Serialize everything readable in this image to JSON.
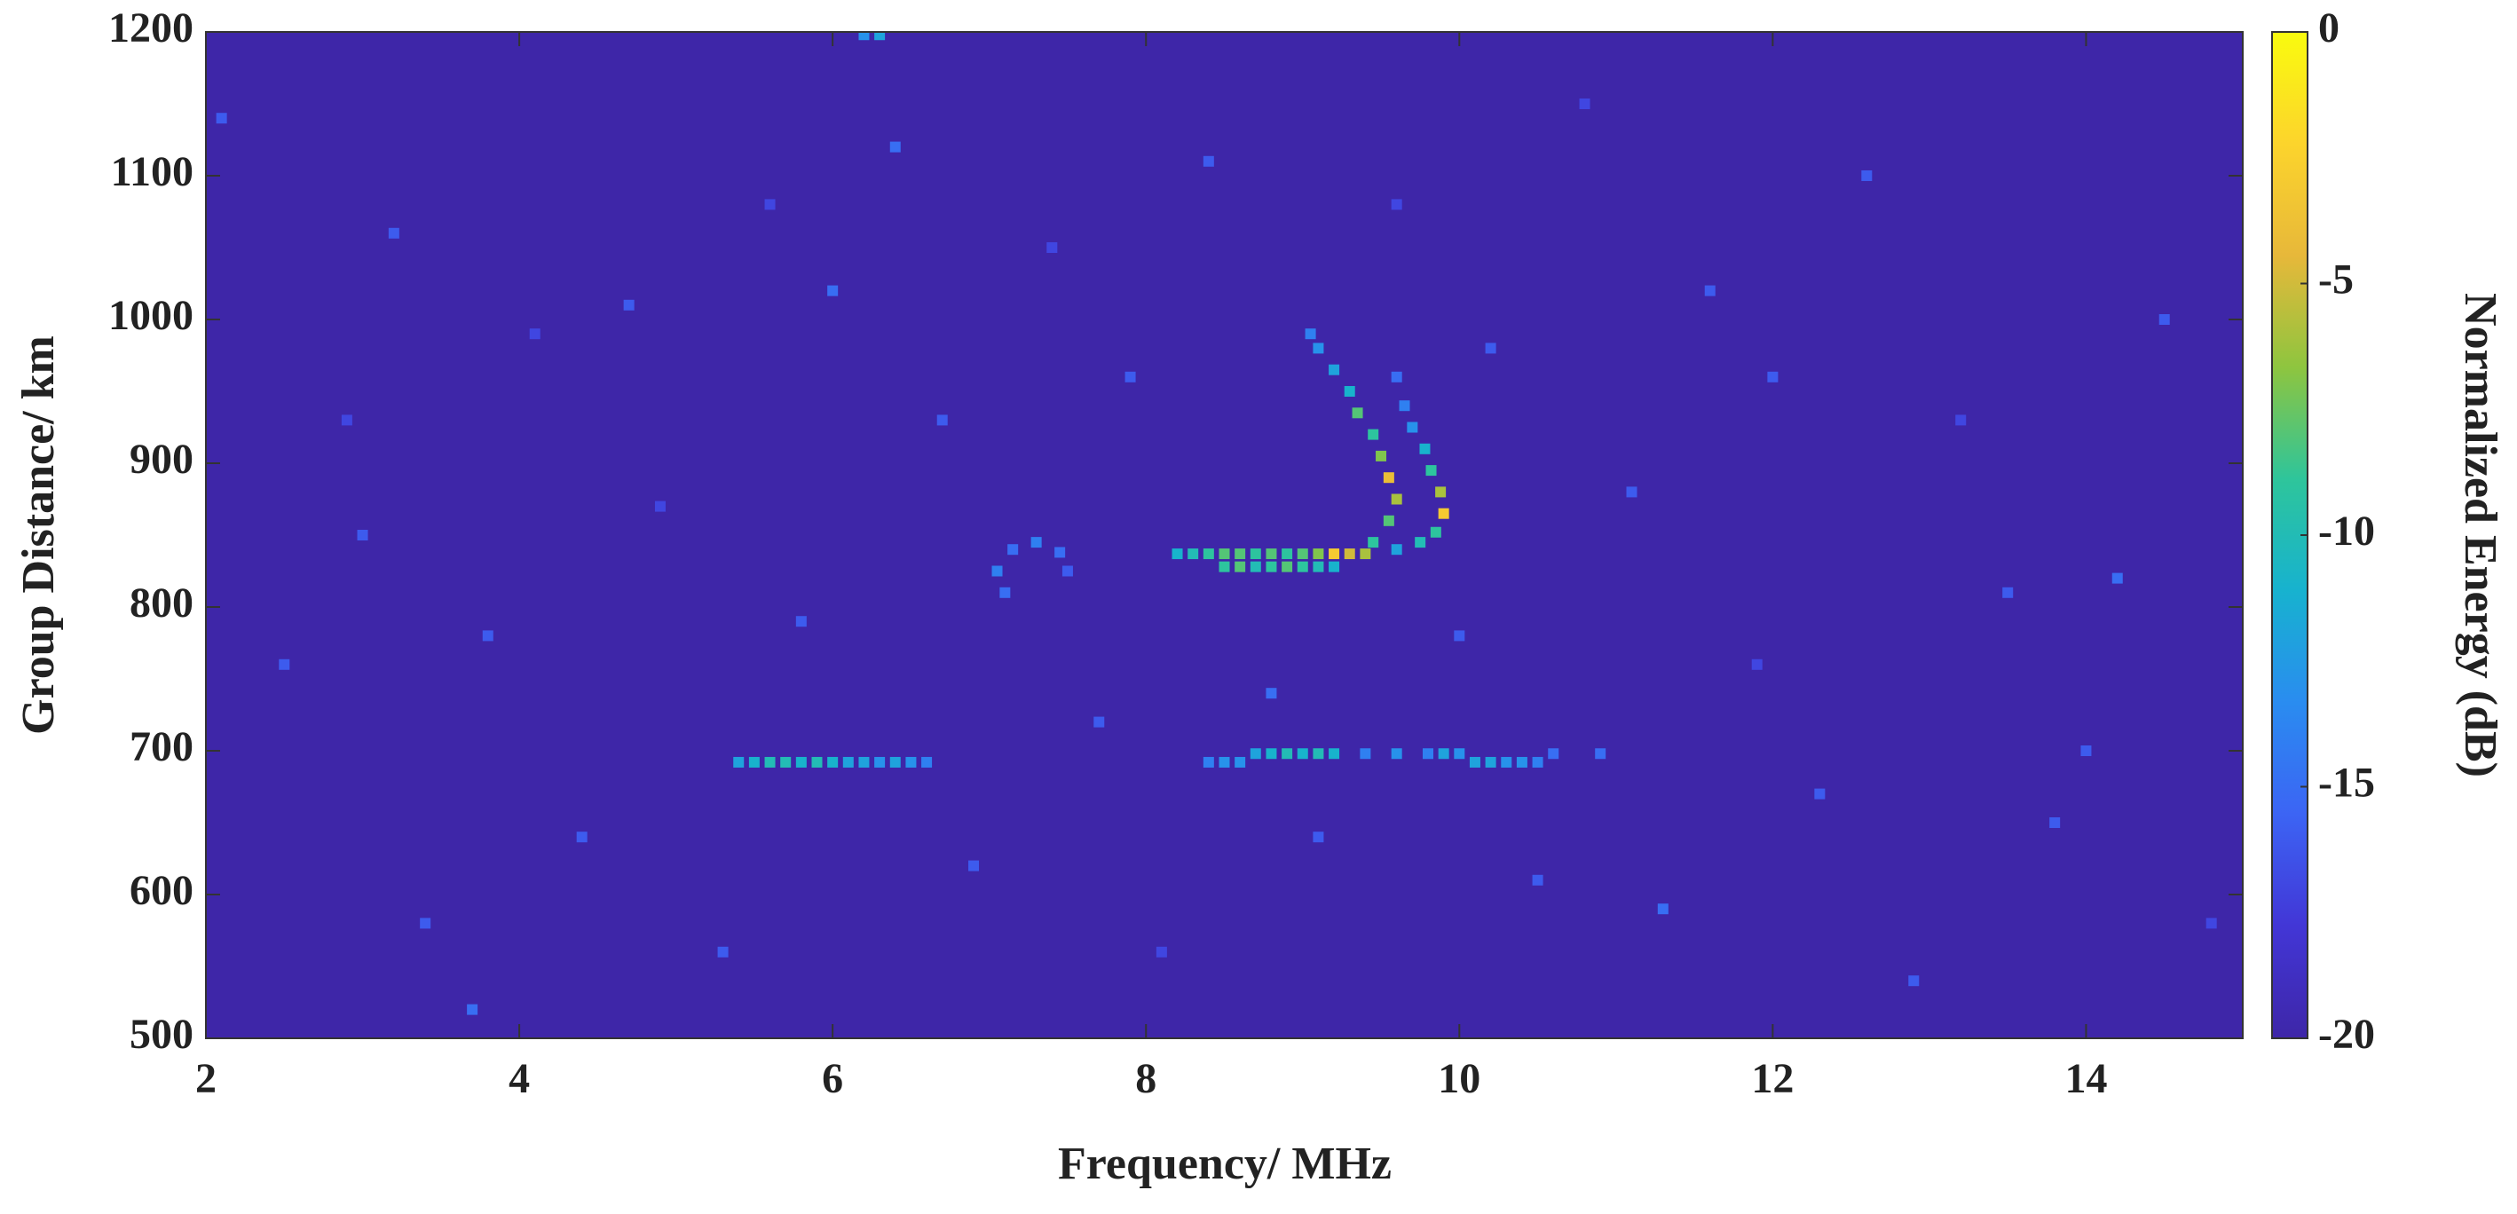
{
  "chart_data": {
    "type": "heatmap",
    "xlabel": "Frequency/ MHz",
    "ylabel": "Group Distance/ km",
    "colorbar_label": "Normalized Energy (dB)",
    "xlim": [
      2,
      15
    ],
    "xticks": [
      2,
      4,
      6,
      8,
      10,
      12,
      14
    ],
    "ylim": [
      500,
      1200
    ],
    "yticks": [
      500,
      600,
      700,
      800,
      900,
      1000,
      1100,
      1200
    ],
    "clim": [
      -20,
      0
    ],
    "cticks": [
      0,
      -5,
      -10,
      -15,
      -20
    ],
    "colormap": [
      "#3e26a8",
      "#4236d6",
      "#3c64f4",
      "#2a8cf0",
      "#17b2cf",
      "#2ec59b",
      "#8ec53f",
      "#e7b83a",
      "#fcd42c",
      "#f9fb0e"
    ],
    "cells": [
      [
        5.4,
        692,
        -12
      ],
      [
        5.5,
        692,
        -11
      ],
      [
        5.6,
        692,
        -10
      ],
      [
        5.7,
        692,
        -10
      ],
      [
        5.8,
        692,
        -11
      ],
      [
        5.9,
        692,
        -10
      ],
      [
        6.0,
        692,
        -11
      ],
      [
        6.1,
        692,
        -12
      ],
      [
        6.2,
        692,
        -12
      ],
      [
        6.3,
        692,
        -13
      ],
      [
        6.4,
        692,
        -12
      ],
      [
        6.5,
        692,
        -13
      ],
      [
        6.6,
        692,
        -14
      ],
      [
        8.4,
        692,
        -14
      ],
      [
        8.5,
        692,
        -13
      ],
      [
        8.6,
        692,
        -13
      ],
      [
        8.7,
        698,
        -12
      ],
      [
        8.8,
        698,
        -11
      ],
      [
        8.9,
        698,
        -10
      ],
      [
        9.0,
        698,
        -11
      ],
      [
        9.1,
        698,
        -10
      ],
      [
        9.2,
        698,
        -11
      ],
      [
        9.4,
        698,
        -14
      ],
      [
        9.6,
        698,
        -13
      ],
      [
        9.8,
        698,
        -14
      ],
      [
        9.9,
        698,
        -12
      ],
      [
        10.0,
        698,
        -13
      ],
      [
        10.1,
        692,
        -12
      ],
      [
        10.2,
        692,
        -12
      ],
      [
        10.3,
        692,
        -13
      ],
      [
        10.4,
        692,
        -13
      ],
      [
        10.5,
        692,
        -14
      ],
      [
        10.6,
        698,
        -15
      ],
      [
        10.9,
        698,
        -15
      ],
      [
        8.2,
        837,
        -11
      ],
      [
        8.3,
        837,
        -10
      ],
      [
        8.4,
        837,
        -9
      ],
      [
        8.5,
        837,
        -8
      ],
      [
        8.6,
        837,
        -8
      ],
      [
        8.7,
        837,
        -9
      ],
      [
        8.8,
        837,
        -8
      ],
      [
        8.9,
        837,
        -9
      ],
      [
        9.0,
        837,
        -8
      ],
      [
        9.1,
        837,
        -7
      ],
      [
        9.2,
        837,
        -3
      ],
      [
        9.3,
        837,
        -5
      ],
      [
        9.4,
        837,
        -6
      ],
      [
        8.5,
        828,
        -9
      ],
      [
        8.6,
        828,
        -8
      ],
      [
        8.7,
        828,
        -10
      ],
      [
        8.8,
        828,
        -9
      ],
      [
        8.9,
        828,
        -8
      ],
      [
        9.0,
        828,
        -9
      ],
      [
        9.1,
        828,
        -10
      ],
      [
        9.2,
        828,
        -11
      ],
      [
        9.45,
        845,
        -9
      ],
      [
        9.55,
        860,
        -8
      ],
      [
        9.6,
        875,
        -6
      ],
      [
        9.55,
        890,
        -4
      ],
      [
        9.5,
        905,
        -7
      ],
      [
        9.45,
        920,
        -9
      ],
      [
        9.35,
        935,
        -8
      ],
      [
        9.3,
        950,
        -11
      ],
      [
        9.2,
        965,
        -12
      ],
      [
        9.1,
        980,
        -13
      ],
      [
        9.05,
        990,
        -14
      ],
      [
        9.6,
        840,
        -12
      ],
      [
        9.75,
        845,
        -10
      ],
      [
        9.85,
        852,
        -9
      ],
      [
        9.9,
        865,
        -3
      ],
      [
        9.88,
        880,
        -6
      ],
      [
        9.82,
        895,
        -9
      ],
      [
        9.78,
        910,
        -11
      ],
      [
        9.7,
        925,
        -13
      ],
      [
        9.65,
        940,
        -14
      ],
      [
        9.6,
        960,
        -15
      ],
      [
        7.1,
        810,
        -15
      ],
      [
        7.05,
        825,
        -14
      ],
      [
        7.15,
        840,
        -15
      ],
      [
        7.3,
        845,
        -14
      ],
      [
        7.45,
        838,
        -15
      ],
      [
        7.5,
        825,
        -16
      ],
      [
        6.2,
        1198,
        -13
      ],
      [
        6.3,
        1198,
        -12
      ],
      [
        2.1,
        1140,
        -16
      ],
      [
        2.5,
        760,
        -16
      ],
      [
        2.9,
        930,
        -17
      ],
      [
        3.2,
        1060,
        -16
      ],
      [
        3.4,
        580,
        -16
      ],
      [
        3.7,
        520,
        -15
      ],
      [
        3.8,
        780,
        -16
      ],
      [
        4.1,
        990,
        -17
      ],
      [
        4.4,
        640,
        -16
      ],
      [
        4.7,
        1010,
        -16
      ],
      [
        4.9,
        870,
        -17
      ],
      [
        5.3,
        560,
        -16
      ],
      [
        5.6,
        1080,
        -17
      ],
      [
        5.8,
        790,
        -16
      ],
      [
        6.4,
        1120,
        -15
      ],
      [
        6.7,
        930,
        -16
      ],
      [
        6.9,
        620,
        -16
      ],
      [
        7.4,
        1050,
        -17
      ],
      [
        7.7,
        720,
        -16
      ],
      [
        7.9,
        960,
        -16
      ],
      [
        8.1,
        560,
        -17
      ],
      [
        8.4,
        1110,
        -16
      ],
      [
        8.8,
        740,
        -15
      ],
      [
        9.1,
        640,
        -16
      ],
      [
        9.6,
        1080,
        -17
      ],
      [
        10.2,
        980,
        -16
      ],
      [
        10.5,
        610,
        -16
      ],
      [
        10.8,
        1150,
        -17
      ],
      [
        11.1,
        880,
        -16
      ],
      [
        11.3,
        590,
        -15
      ],
      [
        11.6,
        1020,
        -16
      ],
      [
        11.9,
        760,
        -17
      ],
      [
        12.3,
        670,
        -16
      ],
      [
        12.6,
        1100,
        -16
      ],
      [
        12.9,
        540,
        -16
      ],
      [
        13.2,
        930,
        -17
      ],
      [
        13.5,
        810,
        -16
      ],
      [
        13.8,
        650,
        -16
      ],
      [
        14.2,
        820,
        -15
      ],
      [
        14.5,
        1000,
        -16
      ],
      [
        14.8,
        580,
        -17
      ],
      [
        3.0,
        850,
        -16
      ],
      [
        6.0,
        1020,
        -15
      ],
      [
        10.0,
        780,
        -16
      ],
      [
        12.0,
        960,
        -16
      ],
      [
        14.0,
        700,
        -16
      ]
    ]
  }
}
